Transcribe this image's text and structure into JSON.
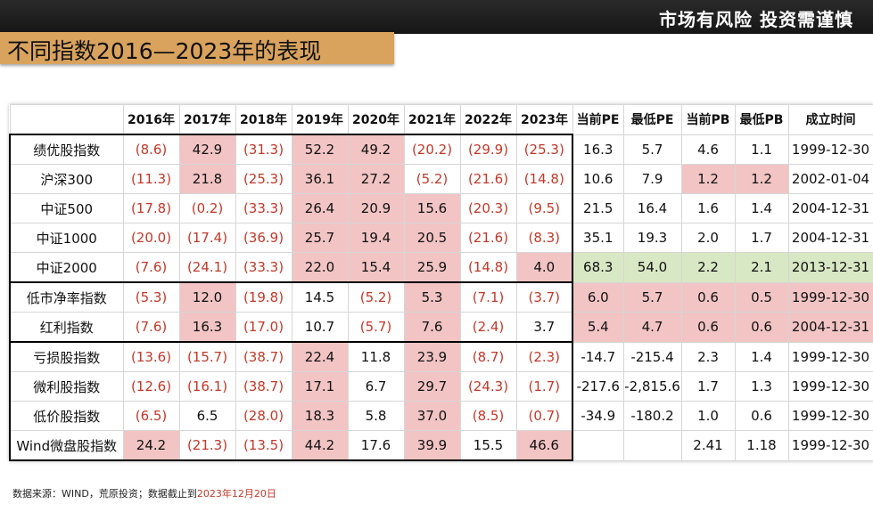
{
  "header": {
    "slogan": "市场有风险 投资需谨慎",
    "title": "不同指数2016—2023年的表现"
  },
  "table": {
    "name_header": "",
    "columns": [
      "2016年",
      "2017年",
      "2018年",
      "2019年",
      "2020年",
      "2021年",
      "2022年",
      "2023年",
      "当前PE",
      "最低PE",
      "当前PB",
      "最低PB",
      "成立时间"
    ],
    "rows": [
      {
        "name": "绩优股指数",
        "values": [
          "(8.6)",
          "42.9",
          "(31.3)",
          "52.2",
          "49.2",
          "(20.2)",
          "(29.9)",
          "(25.3)",
          "16.3",
          "5.7",
          "4.6",
          "1.1",
          "1999-12-30"
        ]
      },
      {
        "name": "沪深300",
        "values": [
          "(11.3)",
          "21.8",
          "(25.3)",
          "36.1",
          "27.2",
          "(5.2)",
          "(21.6)",
          "(14.8)",
          "10.6",
          "7.9",
          "1.2",
          "1.2",
          "2002-01-04"
        ]
      },
      {
        "name": "中证500",
        "values": [
          "(17.8)",
          "(0.2)",
          "(33.3)",
          "26.4",
          "20.9",
          "15.6",
          "(20.3)",
          "(9.5)",
          "21.5",
          "16.4",
          "1.6",
          "1.4",
          "2004-12-31"
        ]
      },
      {
        "name": "中证1000",
        "values": [
          "(20.0)",
          "(17.4)",
          "(36.9)",
          "25.7",
          "19.4",
          "20.5",
          "(21.6)",
          "(8.3)",
          "35.1",
          "19.3",
          "2.0",
          "1.7",
          "2004-12-31"
        ]
      },
      {
        "name": "中证2000",
        "values": [
          "(7.6)",
          "(24.1)",
          "(33.3)",
          "22.0",
          "15.4",
          "25.9",
          "(14.8)",
          "4.0",
          "68.3",
          "54.0",
          "2.2",
          "2.1",
          "2013-12-31"
        ]
      },
      {
        "name": "低市净率指数",
        "values": [
          "(5.3)",
          "12.0",
          "(19.8)",
          "14.5",
          "(5.2)",
          "5.3",
          "(7.1)",
          "(3.7)",
          "6.0",
          "5.7",
          "0.6",
          "0.5",
          "1999-12-30"
        ]
      },
      {
        "name": "红利指数",
        "values": [
          "(7.6)",
          "16.3",
          "(17.0)",
          "10.7",
          "(5.7)",
          "7.6",
          "(2.4)",
          "3.7",
          "5.4",
          "4.7",
          "0.6",
          "0.6",
          "2004-12-31"
        ]
      },
      {
        "name": "亏损股指数",
        "values": [
          "(13.6)",
          "(15.7)",
          "(38.7)",
          "22.4",
          "11.8",
          "23.9",
          "(8.7)",
          "(2.3)",
          "-14.7",
          "-215.4",
          "2.3",
          "1.4",
          "1999-12-30"
        ]
      },
      {
        "name": "微利股指数",
        "values": [
          "(12.6)",
          "(16.1)",
          "(38.7)",
          "17.1",
          "6.7",
          "29.7",
          "(24.3)",
          "(1.7)",
          "-217.6",
          "-2,815.6",
          "1.7",
          "1.3",
          "1999-12-30"
        ]
      },
      {
        "name": "低价股指数",
        "values": [
          "(6.5)",
          "6.5",
          "(28.0)",
          "18.3",
          "5.8",
          "37.0",
          "(8.5)",
          "(0.7)",
          "-34.9",
          "-180.2",
          "1.0",
          "0.6",
          "1999-12-30"
        ]
      },
      {
        "name": "Wind微盘股指数",
        "values": [
          "24.2",
          "(21.3)",
          "(13.5)",
          "44.2",
          "17.6",
          "39.9",
          "15.5",
          "46.6",
          "",
          "",
          "2.41",
          "1.18",
          "1999-12-30"
        ]
      }
    ],
    "highlights": [
      [
        1,
        3,
        4
      ],
      [
        1,
        3,
        4,
        10,
        11
      ],
      [
        3,
        4,
        5
      ],
      [
        3,
        4,
        5
      ],
      [
        3,
        4,
        5,
        7
      ],
      [
        1,
        5,
        8,
        9,
        10,
        11,
        12
      ],
      [
        1,
        5,
        8,
        9,
        10,
        11,
        12
      ],
      [
        3,
        5
      ],
      [
        3,
        5
      ],
      [
        3,
        5
      ],
      [
        0,
        3,
        5,
        7
      ]
    ],
    "green_row": 4,
    "green_from_col": 8,
    "colors": {
      "highlight_red": "#f2c4c4",
      "highlight_green": "#d9e8c4",
      "negative_text": "#c0392b",
      "title_bar": "#d9a35e"
    }
  },
  "footnote": {
    "prefix": "数据来源：WIND，荒原投资；数据截止到",
    "date": "2023年12月20日"
  }
}
